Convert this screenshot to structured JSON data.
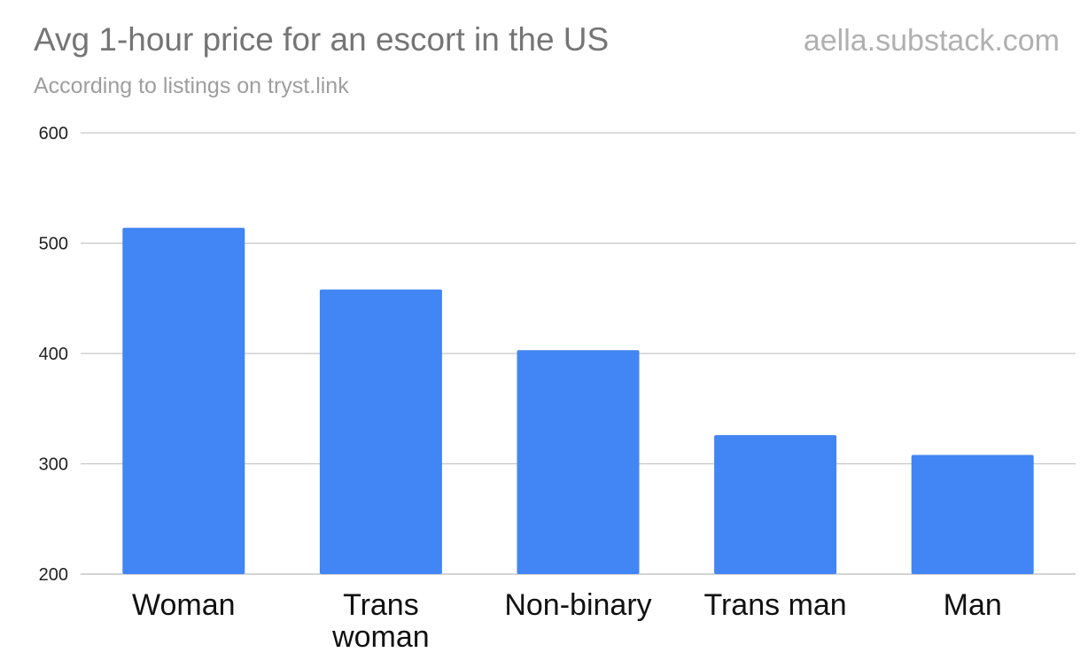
{
  "header": {
    "title": "Avg 1-hour price for an escort in the US",
    "subtitle": "According to listings on tryst.link",
    "watermark": "aella.substack.com"
  },
  "colors": {
    "bar": "#4285f4",
    "grid": "#c6c6c6",
    "axis_text": "#222222",
    "category_text": "#111111"
  },
  "chart_data": {
    "type": "bar",
    "title": "Avg 1-hour price for an escort in the US",
    "subtitle": "According to listings on tryst.link",
    "categories": [
      "Woman",
      "Trans woman",
      "Non-binary",
      "Trans man",
      "Man"
    ],
    "category_lines": [
      [
        "Woman"
      ],
      [
        "Trans",
        "woman"
      ],
      [
        "Non-binary"
      ],
      [
        "Trans man"
      ],
      [
        "Man"
      ]
    ],
    "values": [
      514,
      458,
      403,
      326,
      308
    ],
    "ylim": [
      200,
      600
    ],
    "yticks": [
      200,
      300,
      400,
      500,
      600
    ],
    "xlabel": "",
    "ylabel": "",
    "grid": true,
    "legend": "none"
  }
}
